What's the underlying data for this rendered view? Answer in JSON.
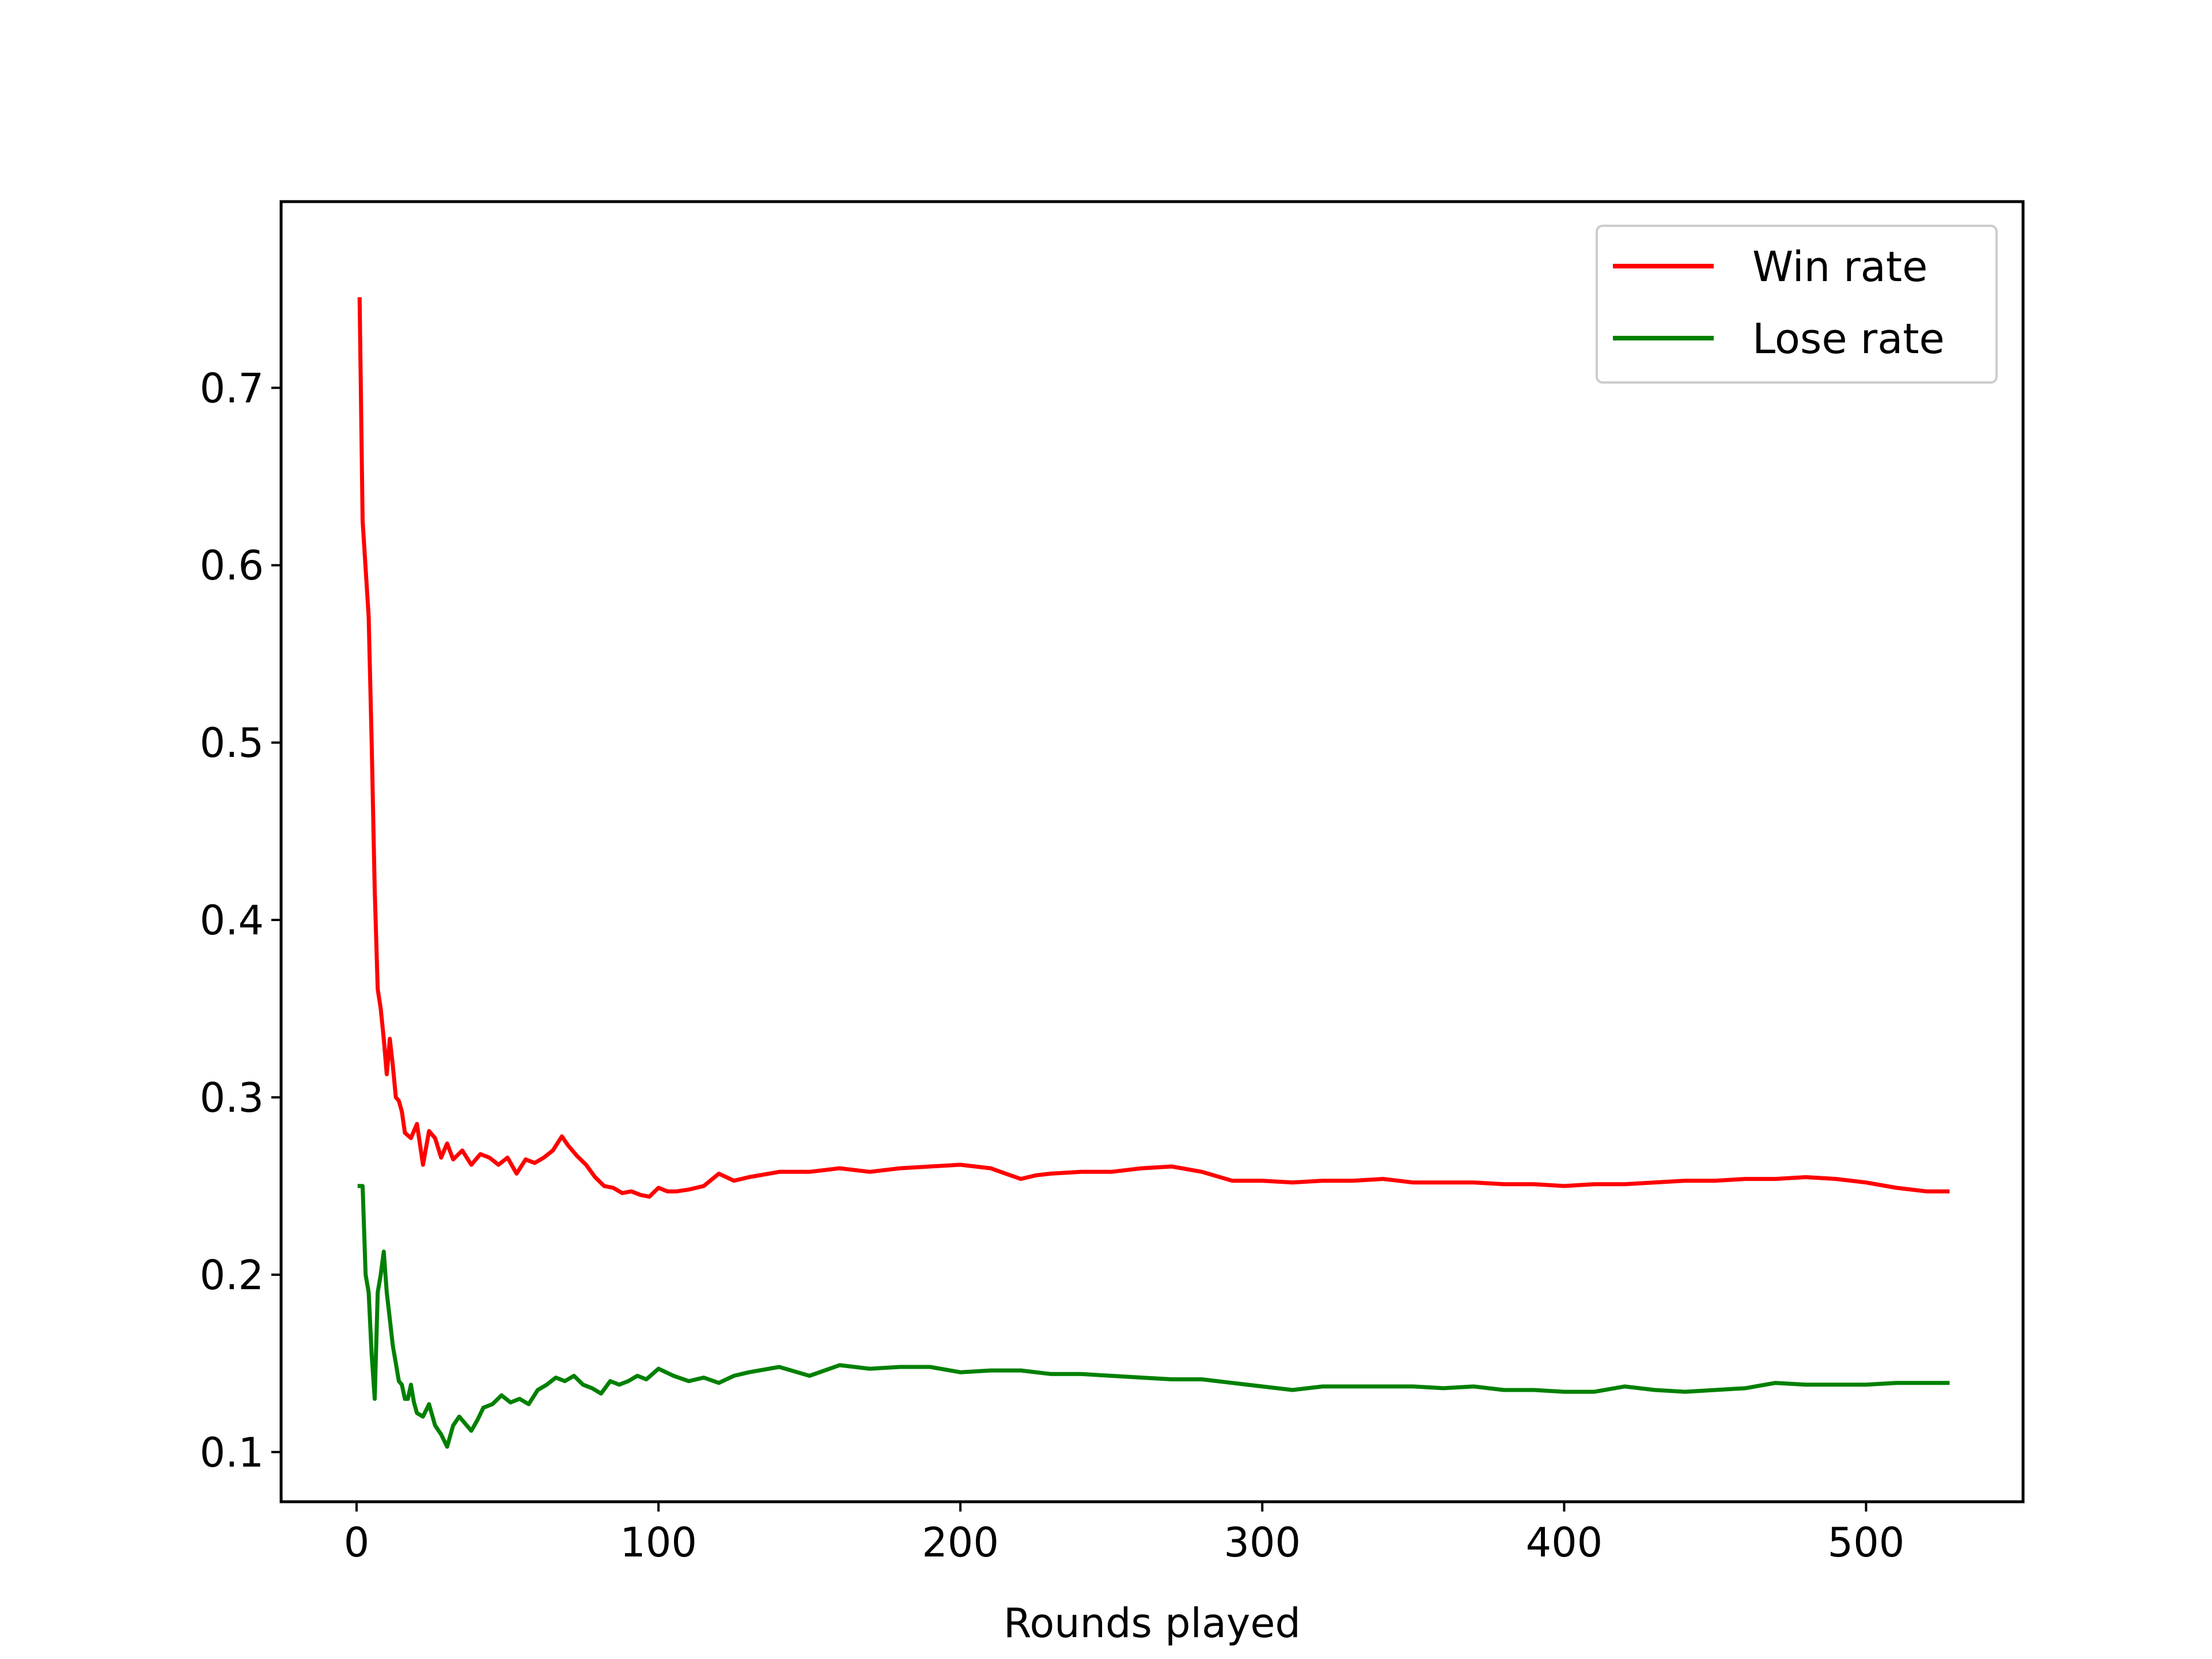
{
  "chart_data": {
    "type": "line",
    "title": "",
    "xlabel": "Rounds played",
    "ylabel": "",
    "xlim": [
      -25,
      552
    ],
    "ylim": [
      0.072,
      0.805
    ],
    "xticks": [
      0,
      100,
      200,
      300,
      400,
      500
    ],
    "xtick_labels": [
      "0",
      "100",
      "200",
      "300",
      "400",
      "500"
    ],
    "yticks": [
      0.1,
      0.2,
      0.3,
      0.4,
      0.5,
      0.6,
      0.7
    ],
    "ytick_labels": [
      "0.1",
      "0.2",
      "0.3",
      "0.4",
      "0.5",
      "0.6",
      "0.7"
    ],
    "grid": false,
    "legend_position": "top-right",
    "series": [
      {
        "name": "Win rate",
        "color": "#ff0000",
        "x": [
          1,
          2,
          4,
          5,
          6,
          7,
          8,
          9,
          10,
          11,
          12,
          13,
          14,
          15,
          16,
          18,
          20,
          22,
          24,
          26,
          28,
          30,
          32,
          35,
          38,
          41,
          44,
          47,
          50,
          53,
          56,
          59,
          62,
          65,
          68,
          70,
          73,
          76,
          79,
          82,
          85,
          88,
          91,
          94,
          97,
          100,
          103,
          106,
          110,
          115,
          120,
          125,
          130,
          140,
          150,
          160,
          170,
          180,
          190,
          200,
          210,
          215,
          220,
          225,
          230,
          240,
          250,
          260,
          270,
          280,
          290,
          300,
          310,
          320,
          330,
          340,
          350,
          360,
          370,
          380,
          390,
          400,
          410,
          420,
          430,
          440,
          450,
          460,
          470,
          480,
          490,
          500,
          510,
          520,
          527
        ],
        "y": [
          0.75,
          0.625,
          0.571,
          0.5,
          0.417,
          0.361,
          0.35,
          0.333,
          0.313,
          0.333,
          0.318,
          0.3,
          0.298,
          0.292,
          0.28,
          0.277,
          0.285,
          0.262,
          0.281,
          0.277,
          0.266,
          0.274,
          0.265,
          0.27,
          0.262,
          0.268,
          0.266,
          0.262,
          0.266,
          0.257,
          0.265,
          0.263,
          0.266,
          0.27,
          0.278,
          0.273,
          0.267,
          0.262,
          0.255,
          0.25,
          0.249,
          0.246,
          0.247,
          0.245,
          0.244,
          0.249,
          0.247,
          0.247,
          0.248,
          0.25,
          0.257,
          0.253,
          0.255,
          0.258,
          0.258,
          0.26,
          0.258,
          0.26,
          0.261,
          0.262,
          0.26,
          0.257,
          0.254,
          0.256,
          0.257,
          0.258,
          0.258,
          0.26,
          0.261,
          0.258,
          0.253,
          0.253,
          0.252,
          0.253,
          0.253,
          0.254,
          0.252,
          0.252,
          0.252,
          0.251,
          0.251,
          0.25,
          0.251,
          0.251,
          0.252,
          0.253,
          0.253,
          0.254,
          0.254,
          0.255,
          0.254,
          0.252,
          0.249,
          0.247,
          0.247
        ]
      },
      {
        "name": "Lose rate",
        "color": "#008000",
        "x": [
          1,
          2,
          3,
          4,
          5,
          6,
          7,
          8,
          9,
          10,
          11,
          12,
          13,
          14,
          15,
          16,
          17,
          18,
          19,
          20,
          22,
          24,
          26,
          28,
          30,
          32,
          34,
          36,
          38,
          40,
          42,
          45,
          48,
          51,
          54,
          57,
          60,
          63,
          66,
          69,
          72,
          75,
          78,
          81,
          84,
          87,
          90,
          93,
          96,
          100,
          105,
          110,
          115,
          120,
          125,
          130,
          140,
          150,
          160,
          170,
          180,
          190,
          200,
          210,
          220,
          230,
          240,
          250,
          260,
          270,
          280,
          290,
          300,
          310,
          320,
          330,
          340,
          350,
          360,
          370,
          380,
          390,
          400,
          410,
          420,
          430,
          440,
          450,
          460,
          470,
          480,
          490,
          500,
          510,
          520,
          527
        ],
        "y": [
          0.25,
          0.25,
          0.2,
          0.19,
          0.155,
          0.13,
          0.19,
          0.2,
          0.213,
          0.19,
          0.175,
          0.16,
          0.15,
          0.14,
          0.138,
          0.13,
          0.13,
          0.138,
          0.128,
          0.122,
          0.12,
          0.127,
          0.115,
          0.11,
          0.103,
          0.115,
          0.12,
          0.116,
          0.112,
          0.118,
          0.125,
          0.127,
          0.132,
          0.128,
          0.13,
          0.127,
          0.135,
          0.138,
          0.142,
          0.14,
          0.143,
          0.138,
          0.136,
          0.133,
          0.14,
          0.138,
          0.14,
          0.143,
          0.141,
          0.147,
          0.143,
          0.14,
          0.142,
          0.139,
          0.143,
          0.145,
          0.148,
          0.143,
          0.149,
          0.147,
          0.148,
          0.148,
          0.145,
          0.146,
          0.146,
          0.144,
          0.144,
          0.143,
          0.142,
          0.141,
          0.141,
          0.139,
          0.137,
          0.135,
          0.137,
          0.137,
          0.137,
          0.137,
          0.136,
          0.137,
          0.135,
          0.135,
          0.134,
          0.134,
          0.137,
          0.135,
          0.134,
          0.135,
          0.136,
          0.139,
          0.138,
          0.138,
          0.138,
          0.139,
          0.139,
          0.139
        ]
      }
    ]
  }
}
